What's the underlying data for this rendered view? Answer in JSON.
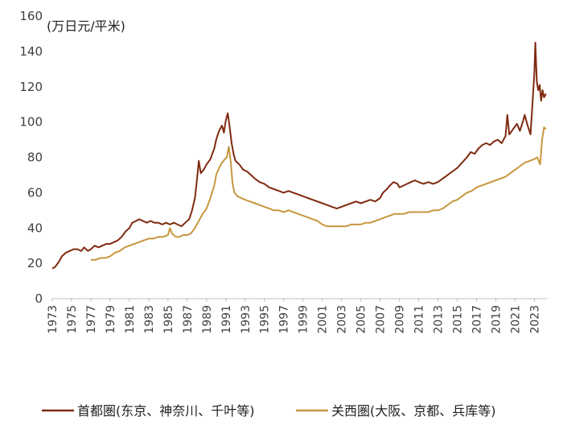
{
  "chart_data": {
    "type": "line",
    "title": "",
    "unit_label": "(万日元/平米)",
    "xlabel": "",
    "ylabel": "",
    "xlim": [
      1973,
      2024.3
    ],
    "ylim": [
      0,
      160
    ],
    "y_ticks": [
      0,
      20,
      40,
      60,
      80,
      100,
      120,
      140,
      160
    ],
    "x_tick_labels": [
      "1973",
      "1975",
      "1977",
      "1979",
      "1981",
      "1983",
      "1985",
      "1987",
      "1989",
      "1991",
      "1993",
      "1995",
      "1997",
      "1999",
      "2001",
      "2003",
      "2005",
      "2007",
      "2009",
      "2011",
      "2013",
      "2015",
      "2017",
      "2019",
      "2021",
      "2023"
    ],
    "grid": false,
    "legend_position": "bottom",
    "series": [
      {
        "name": "首都圏(东京、神奈川、千叶等)",
        "color": "#7f2a10",
        "points": [
          [
            1973.0,
            17
          ],
          [
            1973.3,
            18
          ],
          [
            1973.7,
            21
          ],
          [
            1974.0,
            24
          ],
          [
            1974.4,
            26
          ],
          [
            1974.8,
            27
          ],
          [
            1975.2,
            28
          ],
          [
            1975.6,
            28
          ],
          [
            1976.0,
            27
          ],
          [
            1976.3,
            29
          ],
          [
            1976.7,
            27
          ],
          [
            1977.0,
            28
          ],
          [
            1977.4,
            30
          ],
          [
            1977.8,
            29
          ],
          [
            1978.2,
            30
          ],
          [
            1978.6,
            31
          ],
          [
            1979.0,
            31
          ],
          [
            1979.4,
            32
          ],
          [
            1979.8,
            33
          ],
          [
            1980.2,
            35
          ],
          [
            1980.6,
            38
          ],
          [
            1981.0,
            40
          ],
          [
            1981.3,
            43
          ],
          [
            1981.7,
            44
          ],
          [
            1982.0,
            45
          ],
          [
            1982.4,
            44
          ],
          [
            1982.8,
            43
          ],
          [
            1983.2,
            44
          ],
          [
            1983.6,
            43
          ],
          [
            1984.0,
            43
          ],
          [
            1984.4,
            42
          ],
          [
            1984.8,
            43
          ],
          [
            1985.2,
            42
          ],
          [
            1985.6,
            43
          ],
          [
            1986.0,
            42
          ],
          [
            1986.4,
            41
          ],
          [
            1986.8,
            43
          ],
          [
            1987.2,
            45
          ],
          [
            1987.5,
            50
          ],
          [
            1987.8,
            57
          ],
          [
            1988.0,
            67
          ],
          [
            1988.2,
            78
          ],
          [
            1988.4,
            71
          ],
          [
            1988.7,
            73
          ],
          [
            1989.0,
            76
          ],
          [
            1989.4,
            79
          ],
          [
            1989.8,
            85
          ],
          [
            1990.0,
            90
          ],
          [
            1990.3,
            95
          ],
          [
            1990.6,
            98
          ],
          [
            1990.8,
            94
          ],
          [
            1991.0,
            101
          ],
          [
            1991.2,
            105
          ],
          [
            1991.4,
            97
          ],
          [
            1991.6,
            88
          ],
          [
            1991.8,
            82
          ],
          [
            1992.0,
            78
          ],
          [
            1992.4,
            76
          ],
          [
            1992.8,
            73
          ],
          [
            1993.2,
            72
          ],
          [
            1993.6,
            70
          ],
          [
            1994.0,
            68
          ],
          [
            1994.5,
            66
          ],
          [
            1995.0,
            65
          ],
          [
            1995.5,
            63
          ],
          [
            1996.0,
            62
          ],
          [
            1996.5,
            61
          ],
          [
            1997.0,
            60
          ],
          [
            1997.5,
            61
          ],
          [
            1998.0,
            60
          ],
          [
            1998.5,
            59
          ],
          [
            1999.0,
            58
          ],
          [
            1999.5,
            57
          ],
          [
            2000.0,
            56
          ],
          [
            2000.5,
            55
          ],
          [
            2001.0,
            54
          ],
          [
            2001.5,
            53
          ],
          [
            2002.0,
            52
          ],
          [
            2002.5,
            51
          ],
          [
            2003.0,
            52
          ],
          [
            2003.5,
            53
          ],
          [
            2004.0,
            54
          ],
          [
            2004.5,
            55
          ],
          [
            2005.0,
            54
          ],
          [
            2005.5,
            55
          ],
          [
            2006.0,
            56
          ],
          [
            2006.5,
            55
          ],
          [
            2007.0,
            57
          ],
          [
            2007.3,
            60
          ],
          [
            2007.7,
            62
          ],
          [
            2008.0,
            64
          ],
          [
            2008.4,
            66
          ],
          [
            2008.8,
            65
          ],
          [
            2009.0,
            63
          ],
          [
            2009.4,
            64
          ],
          [
            2009.8,
            65
          ],
          [
            2010.2,
            66
          ],
          [
            2010.6,
            67
          ],
          [
            2011.0,
            66
          ],
          [
            2011.5,
            65
          ],
          [
            2012.0,
            66
          ],
          [
            2012.5,
            65
          ],
          [
            2013.0,
            66
          ],
          [
            2013.5,
            68
          ],
          [
            2014.0,
            70
          ],
          [
            2014.5,
            72
          ],
          [
            2015.0,
            74
          ],
          [
            2015.5,
            77
          ],
          [
            2016.0,
            80
          ],
          [
            2016.4,
            83
          ],
          [
            2016.8,
            82
          ],
          [
            2017.2,
            85
          ],
          [
            2017.6,
            87
          ],
          [
            2018.0,
            88
          ],
          [
            2018.4,
            87
          ],
          [
            2018.8,
            89
          ],
          [
            2019.2,
            90
          ],
          [
            2019.6,
            88
          ],
          [
            2020.0,
            92
          ],
          [
            2020.2,
            104
          ],
          [
            2020.4,
            93
          ],
          [
            2020.8,
            96
          ],
          [
            2021.2,
            99
          ],
          [
            2021.5,
            95
          ],
          [
            2021.8,
            100
          ],
          [
            2022.0,
            104
          ],
          [
            2022.3,
            98
          ],
          [
            2022.6,
            93
          ],
          [
            2022.8,
            110
          ],
          [
            2023.0,
            128
          ],
          [
            2023.1,
            145
          ],
          [
            2023.25,
            123
          ],
          [
            2023.4,
            118
          ],
          [
            2023.55,
            121
          ],
          [
            2023.7,
            112
          ],
          [
            2023.85,
            118
          ],
          [
            2024.0,
            114
          ],
          [
            2024.2,
            116
          ]
        ]
      },
      {
        "name": "关西圏(大阪、京都、兵库等)",
        "color": "#c8963e",
        "points": [
          [
            1977.0,
            22
          ],
          [
            1977.5,
            22
          ],
          [
            1978.0,
            23
          ],
          [
            1978.5,
            23
          ],
          [
            1979.0,
            24
          ],
          [
            1979.5,
            26
          ],
          [
            1980.0,
            27
          ],
          [
            1980.5,
            29
          ],
          [
            1981.0,
            30
          ],
          [
            1981.5,
            31
          ],
          [
            1982.0,
            32
          ],
          [
            1982.5,
            33
          ],
          [
            1983.0,
            34
          ],
          [
            1983.5,
            34
          ],
          [
            1984.0,
            35
          ],
          [
            1984.5,
            35
          ],
          [
            1985.0,
            36
          ],
          [
            1985.2,
            40
          ],
          [
            1985.4,
            37
          ],
          [
            1985.8,
            35
          ],
          [
            1986.2,
            35
          ],
          [
            1986.6,
            36
          ],
          [
            1987.0,
            36
          ],
          [
            1987.4,
            37
          ],
          [
            1987.8,
            40
          ],
          [
            1988.2,
            44
          ],
          [
            1988.6,
            48
          ],
          [
            1989.0,
            51
          ],
          [
            1989.4,
            57
          ],
          [
            1989.8,
            64
          ],
          [
            1990.0,
            70
          ],
          [
            1990.3,
            74
          ],
          [
            1990.6,
            77
          ],
          [
            1990.9,
            79
          ],
          [
            1991.1,
            80
          ],
          [
            1991.3,
            86
          ],
          [
            1991.5,
            78
          ],
          [
            1991.7,
            65
          ],
          [
            1991.9,
            60
          ],
          [
            1992.2,
            58
          ],
          [
            1992.6,
            57
          ],
          [
            1993.0,
            56
          ],
          [
            1993.5,
            55
          ],
          [
            1994.0,
            54
          ],
          [
            1994.5,
            53
          ],
          [
            1995.0,
            52
          ],
          [
            1995.5,
            51
          ],
          [
            1996.0,
            50
          ],
          [
            1996.5,
            50
          ],
          [
            1997.0,
            49
          ],
          [
            1997.5,
            50
          ],
          [
            1998.0,
            49
          ],
          [
            1998.5,
            48
          ],
          [
            1999.0,
            47
          ],
          [
            1999.5,
            46
          ],
          [
            2000.0,
            45
          ],
          [
            2000.5,
            44
          ],
          [
            2001.0,
            42
          ],
          [
            2001.5,
            41
          ],
          [
            2002.0,
            41
          ],
          [
            2002.5,
            41
          ],
          [
            2003.0,
            41
          ],
          [
            2003.5,
            41
          ],
          [
            2004.0,
            42
          ],
          [
            2004.5,
            42
          ],
          [
            2005.0,
            42
          ],
          [
            2005.5,
            43
          ],
          [
            2006.0,
            43
          ],
          [
            2006.5,
            44
          ],
          [
            2007.0,
            45
          ],
          [
            2007.5,
            46
          ],
          [
            2008.0,
            47
          ],
          [
            2008.5,
            48
          ],
          [
            2009.0,
            48
          ],
          [
            2009.5,
            48
          ],
          [
            2010.0,
            49
          ],
          [
            2010.5,
            49
          ],
          [
            2011.0,
            49
          ],
          [
            2011.5,
            49
          ],
          [
            2012.0,
            49
          ],
          [
            2012.5,
            50
          ],
          [
            2013.0,
            50
          ],
          [
            2013.5,
            51
          ],
          [
            2014.0,
            53
          ],
          [
            2014.5,
            55
          ],
          [
            2015.0,
            56
          ],
          [
            2015.5,
            58
          ],
          [
            2016.0,
            60
          ],
          [
            2016.5,
            61
          ],
          [
            2017.0,
            63
          ],
          [
            2017.5,
            64
          ],
          [
            2018.0,
            65
          ],
          [
            2018.5,
            66
          ],
          [
            2019.0,
            67
          ],
          [
            2019.5,
            68
          ],
          [
            2020.0,
            69
          ],
          [
            2020.5,
            71
          ],
          [
            2021.0,
            73
          ],
          [
            2021.5,
            75
          ],
          [
            2022.0,
            77
          ],
          [
            2022.5,
            78
          ],
          [
            2023.0,
            79
          ],
          [
            2023.3,
            80
          ],
          [
            2023.6,
            76
          ],
          [
            2023.8,
            90
          ],
          [
            2024.0,
            97
          ],
          [
            2024.2,
            96
          ]
        ]
      }
    ]
  }
}
